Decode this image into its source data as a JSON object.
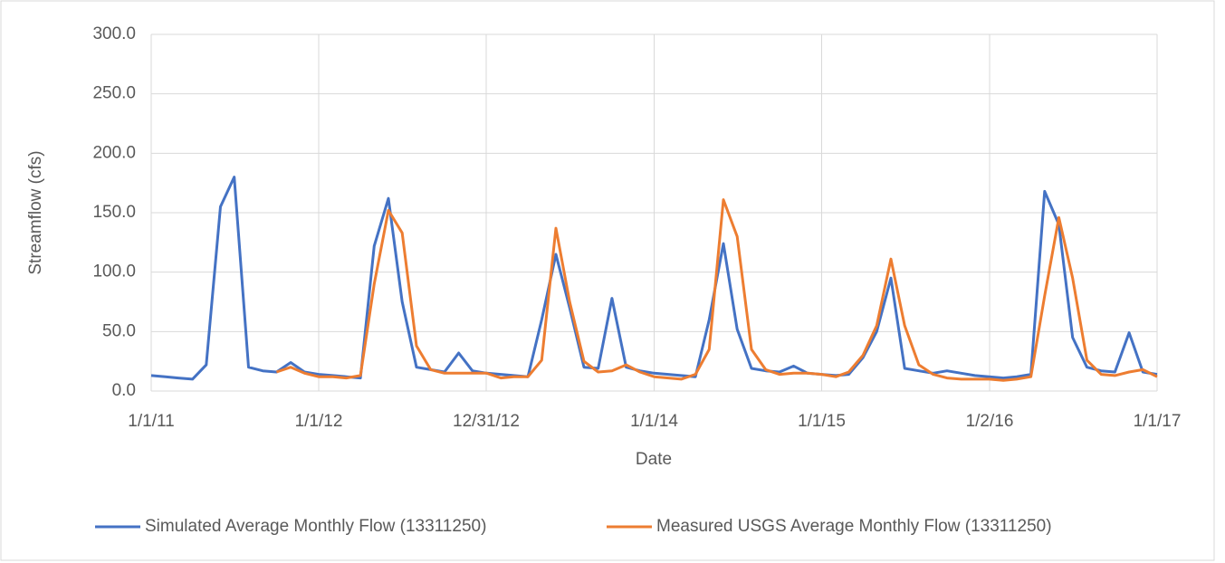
{
  "chart_data": {
    "type": "line",
    "x_label": "Date",
    "y_label": "Streamflow (cfs)",
    "x": [
      "2011-01-01",
      "2011-02-01",
      "2011-03-01",
      "2011-04-01",
      "2011-05-01",
      "2011-06-01",
      "2011-07-01",
      "2011-08-01",
      "2011-09-01",
      "2011-10-01",
      "2011-11-01",
      "2011-12-01",
      "2012-01-01",
      "2012-02-01",
      "2012-03-01",
      "2012-04-01",
      "2012-05-01",
      "2012-06-01",
      "2012-07-01",
      "2012-08-01",
      "2012-09-01",
      "2012-10-01",
      "2012-11-01",
      "2012-12-01",
      "2013-01-01",
      "2013-02-01",
      "2013-03-01",
      "2013-04-01",
      "2013-05-01",
      "2013-06-01",
      "2013-07-01",
      "2013-08-01",
      "2013-09-01",
      "2013-10-01",
      "2013-11-01",
      "2013-12-01",
      "2014-01-01",
      "2014-02-01",
      "2014-03-01",
      "2014-04-01",
      "2014-05-01",
      "2014-06-01",
      "2014-07-01",
      "2014-08-01",
      "2014-09-01",
      "2014-10-01",
      "2014-11-01",
      "2014-12-01",
      "2015-01-01",
      "2015-02-01",
      "2015-03-01",
      "2015-04-01",
      "2015-05-01",
      "2015-06-01",
      "2015-07-01",
      "2015-08-01",
      "2015-09-01",
      "2015-10-01",
      "2015-11-01",
      "2015-12-01",
      "2016-01-01",
      "2016-02-01",
      "2016-03-01",
      "2016-04-01",
      "2016-05-01",
      "2016-06-01",
      "2016-07-01",
      "2016-08-01",
      "2016-09-01",
      "2016-10-01",
      "2016-11-01",
      "2016-12-01",
      "2017-01-01"
    ],
    "series": [
      {
        "name": "Simulated Average Monthly Flow (13311250)",
        "color": "#4472c4",
        "values": [
          13,
          12,
          11,
          10,
          22,
          155,
          180,
          20,
          17,
          16,
          24,
          16,
          14,
          13,
          12,
          11,
          122,
          162,
          75,
          20,
          18,
          16,
          32,
          17,
          15,
          14,
          13,
          12,
          60,
          115,
          70,
          20,
          19,
          78,
          20,
          17,
          15,
          14,
          13,
          12,
          60,
          124,
          52,
          19,
          17,
          16,
          21,
          15,
          14,
          13,
          14,
          28,
          50,
          95,
          19,
          17,
          15,
          17,
          15,
          13,
          12,
          11,
          12,
          14,
          168,
          140,
          45,
          20,
          17,
          16,
          49,
          16,
          14
        ]
      },
      {
        "name": "Measured USGS Average Monthly Flow (13311250)",
        "color": "#ed7d31",
        "values": [
          null,
          null,
          null,
          null,
          null,
          null,
          null,
          null,
          null,
          16,
          20,
          15,
          12,
          12,
          11,
          13,
          90,
          152,
          133,
          38,
          18,
          15,
          15,
          15,
          15,
          11,
          12,
          12,
          26,
          137,
          75,
          25,
          16,
          17,
          22,
          16,
          12,
          11,
          10,
          14,
          35,
          161,
          130,
          35,
          18,
          14,
          15,
          15,
          14,
          12,
          16,
          30,
          55,
          111,
          55,
          22,
          14,
          11,
          10,
          10,
          10,
          9,
          10,
          12,
          80,
          146,
          95,
          26,
          14,
          13,
          16,
          18,
          12
        ]
      }
    ],
    "xlim": [
      "2011-01-01",
      "2017-01-01"
    ],
    "xticks": [
      {
        "value": "2011-01-01",
        "label": "1/1/11"
      },
      {
        "value": "2012-01-01",
        "label": "1/1/12"
      },
      {
        "value": "2012-12-31",
        "label": "12/31/12"
      },
      {
        "value": "2014-01-01",
        "label": "1/1/14"
      },
      {
        "value": "2015-01-01",
        "label": "1/1/15"
      },
      {
        "value": "2016-01-02",
        "label": "1/2/16"
      },
      {
        "value": "2017-01-01",
        "label": "1/1/17"
      }
    ],
    "ylim": [
      0,
      300
    ],
    "yticks": [
      {
        "value": 0,
        "label": "0.0"
      },
      {
        "value": 50,
        "label": "50.0"
      },
      {
        "value": 100,
        "label": "100.0"
      },
      {
        "value": 150,
        "label": "150.0"
      },
      {
        "value": 200,
        "label": "200.0"
      },
      {
        "value": 250,
        "label": "250.0"
      },
      {
        "value": 300,
        "label": "300.0"
      }
    ],
    "grid": true,
    "legend": "bottom"
  }
}
